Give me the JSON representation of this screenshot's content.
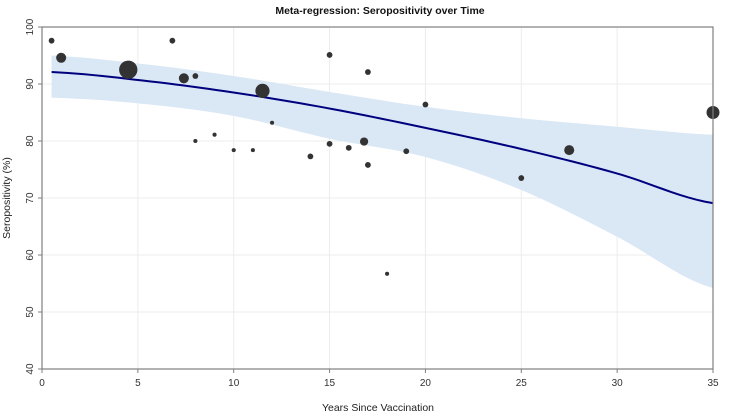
{
  "chart_data": {
    "type": "scatter",
    "title": "Meta-regression: Seropositivity over Time",
    "xlabel": "Years Since Vaccination",
    "ylabel": "Seropositivity (%)",
    "xlim": [
      0,
      35
    ],
    "ylim": [
      40,
      100
    ],
    "xticks": [
      0,
      5,
      10,
      15,
      20,
      25,
      30,
      35
    ],
    "yticks": [
      40,
      50,
      60,
      70,
      80,
      90,
      100
    ],
    "grid": true,
    "legend": "none",
    "colors": {
      "points": "#333333",
      "fit_line": "#00007f",
      "ci_band": "#dae7f5",
      "grid": "#ececec",
      "axis": "#7f7f7f"
    },
    "points": [
      {
        "x": 0.5,
        "y": 97.6,
        "weight": 1
      },
      {
        "x": 1.0,
        "y": 94.6,
        "weight": 3
      },
      {
        "x": 4.5,
        "y": 92.5,
        "weight": 10
      },
      {
        "x": 6.8,
        "y": 97.6,
        "weight": 1
      },
      {
        "x": 7.4,
        "y": 91.0,
        "weight": 3
      },
      {
        "x": 8.0,
        "y": 91.4,
        "weight": 1
      },
      {
        "x": 8.0,
        "y": 80.0,
        "weight": 0.5
      },
      {
        "x": 9.0,
        "y": 81.1,
        "weight": 0.5
      },
      {
        "x": 10.0,
        "y": 78.4,
        "weight": 0.5
      },
      {
        "x": 11.0,
        "y": 78.4,
        "weight": 0.5
      },
      {
        "x": 11.5,
        "y": 88.8,
        "weight": 6
      },
      {
        "x": 12.0,
        "y": 83.2,
        "weight": 0.5
      },
      {
        "x": 14.0,
        "y": 77.3,
        "weight": 1
      },
      {
        "x": 15.0,
        "y": 95.1,
        "weight": 1
      },
      {
        "x": 15.0,
        "y": 79.5,
        "weight": 1
      },
      {
        "x": 16.0,
        "y": 78.8,
        "weight": 1
      },
      {
        "x": 16.8,
        "y": 79.9,
        "weight": 2
      },
      {
        "x": 17.0,
        "y": 92.1,
        "weight": 1
      },
      {
        "x": 17.0,
        "y": 75.8,
        "weight": 1
      },
      {
        "x": 18.0,
        "y": 56.7,
        "weight": 0.5
      },
      {
        "x": 19.0,
        "y": 78.2,
        "weight": 1
      },
      {
        "x": 20.0,
        "y": 86.4,
        "weight": 1
      },
      {
        "x": 25.0,
        "y": 73.5,
        "weight": 1
      },
      {
        "x": 27.5,
        "y": 78.4,
        "weight": 3
      },
      {
        "x": 35.0,
        "y": 85.0,
        "weight": 5
      }
    ],
    "fit": {
      "x": [
        0.5,
        5,
        10,
        15,
        20,
        25,
        30,
        35
      ],
      "y": [
        92.1,
        90.7,
        88.5,
        85.7,
        82.3,
        78.6,
        74.3,
        69.1
      ],
      "lower": [
        87.6,
        86.6,
        84.4,
        80.4,
        77.2,
        71.4,
        63.2,
        54.2
      ],
      "upper": [
        95.0,
        93.6,
        91.4,
        88.6,
        86.0,
        84.0,
        82.5,
        81.1
      ]
    }
  }
}
